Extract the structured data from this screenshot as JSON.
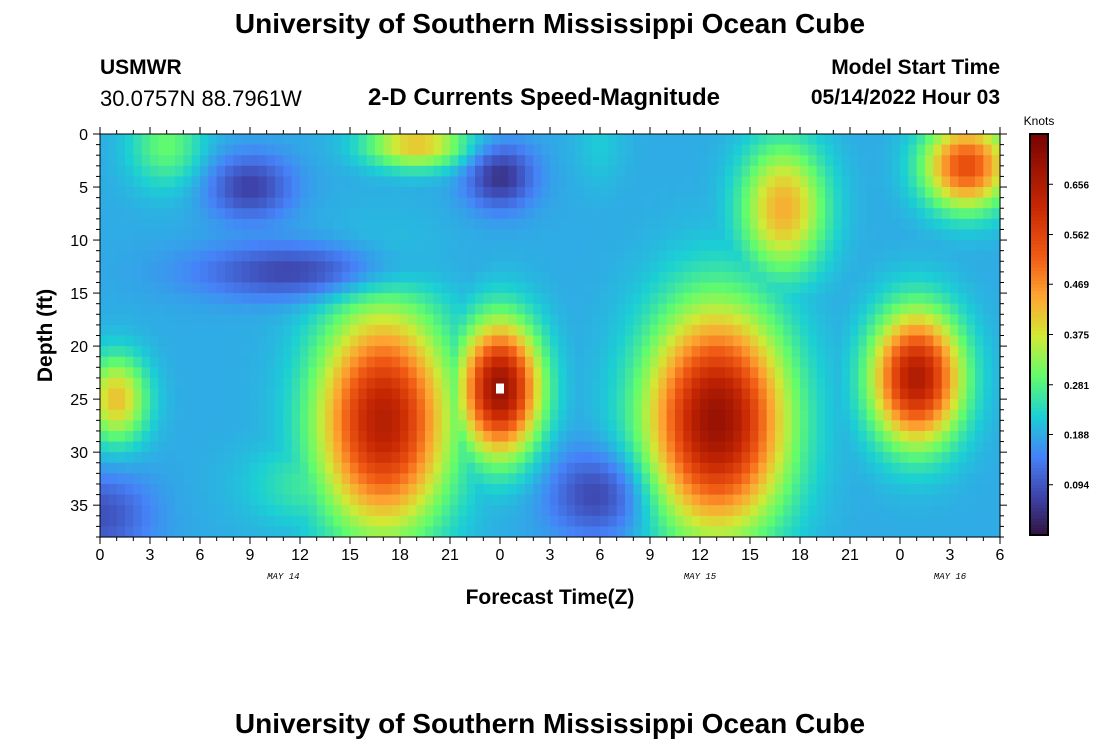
{
  "page": {
    "title_top": "University of Southern Mississippi Ocean Cube",
    "title_bottom": "University of Southern Mississippi Ocean Cube",
    "station": "USMWR",
    "coordinates": "30.0757N  88.7961W",
    "subtitle": "2-D Currents Speed-Magnitude",
    "model_start_label": "Model Start Time",
    "model_start_value": "05/14/2022 Hour 03"
  },
  "chart_data": {
    "type": "heatmap",
    "xlabel": "Forecast Time(Z)",
    "ylabel": "Depth (ft)",
    "x_tick_labels": [
      "0",
      "3",
      "6",
      "9",
      "12",
      "15",
      "18",
      "21",
      "0",
      "3",
      "6",
      "9",
      "12",
      "15",
      "18",
      "21",
      "0",
      "3",
      "6"
    ],
    "x_range_hours": [
      0,
      54
    ],
    "date_labels": [
      {
        "text": "MAY 14",
        "hour": 11
      },
      {
        "text": "MAY 15",
        "hour": 36
      },
      {
        "text": "MAY 16",
        "hour": 51
      }
    ],
    "y_ticks": [
      0,
      5,
      10,
      15,
      20,
      25,
      30,
      35
    ],
    "ylim": [
      0,
      38
    ],
    "y_inverted": true,
    "colorbar": {
      "label": "Knots",
      "ticks": [
        "0.656",
        "0.562",
        "0.469",
        "0.375",
        "0.281",
        "0.188",
        "0.094"
      ],
      "range": [
        0.0,
        0.75
      ]
    },
    "blobs": [
      {
        "hour": 1,
        "depth": 25,
        "sx": 1.8,
        "sy": 4,
        "value": 0.42
      },
      {
        "hour": 4,
        "depth": 1,
        "sx": 2.2,
        "sy": 4,
        "value": 0.3
      },
      {
        "hour": 17,
        "depth": 27,
        "sx": 3.8,
        "sy": 10,
        "value": 0.65
      },
      {
        "hour": 13,
        "depth": 33,
        "sx": 4,
        "sy": 4,
        "value": 0.27
      },
      {
        "hour": 19,
        "depth": 1,
        "sx": 3,
        "sy": 2.2,
        "value": 0.42
      },
      {
        "hour": 24,
        "depth": 24,
        "sx": 2.3,
        "sy": 6,
        "value": 0.7
      },
      {
        "hour": 24,
        "depth": 31,
        "sx": 2.6,
        "sy": 4,
        "value": 0.2
      },
      {
        "hour": 30,
        "depth": 1,
        "sx": 1.5,
        "sy": 4,
        "value": 0.22
      },
      {
        "hour": 37,
        "depth": 27,
        "sx": 4,
        "sy": 10,
        "value": 0.7
      },
      {
        "hour": 41,
        "depth": 7,
        "sx": 2.5,
        "sy": 6,
        "value": 0.44
      },
      {
        "hour": 49,
        "depth": 23,
        "sx": 2.6,
        "sy": 6,
        "value": 0.66
      },
      {
        "hour": 52,
        "depth": 3,
        "sx": 2.5,
        "sy": 4,
        "value": 0.55
      }
    ],
    "minima": [
      {
        "hour": 9,
        "depth": 5,
        "sx": 2.5,
        "sy": 3,
        "amount": 0.12
      },
      {
        "hour": 24,
        "depth": 4,
        "sx": 2,
        "sy": 3,
        "amount": 0.14
      },
      {
        "hour": 30,
        "depth": 34,
        "sx": 3,
        "sy": 4,
        "amount": 0.12
      },
      {
        "hour": 0,
        "depth": 36,
        "sx": 3,
        "sy": 4,
        "amount": 0.1
      },
      {
        "hour": 12,
        "depth": 13,
        "sx": 6,
        "sy": 2.5,
        "amount": 0.12
      }
    ],
    "marker": {
      "hour": 24,
      "depth": 24
    }
  }
}
